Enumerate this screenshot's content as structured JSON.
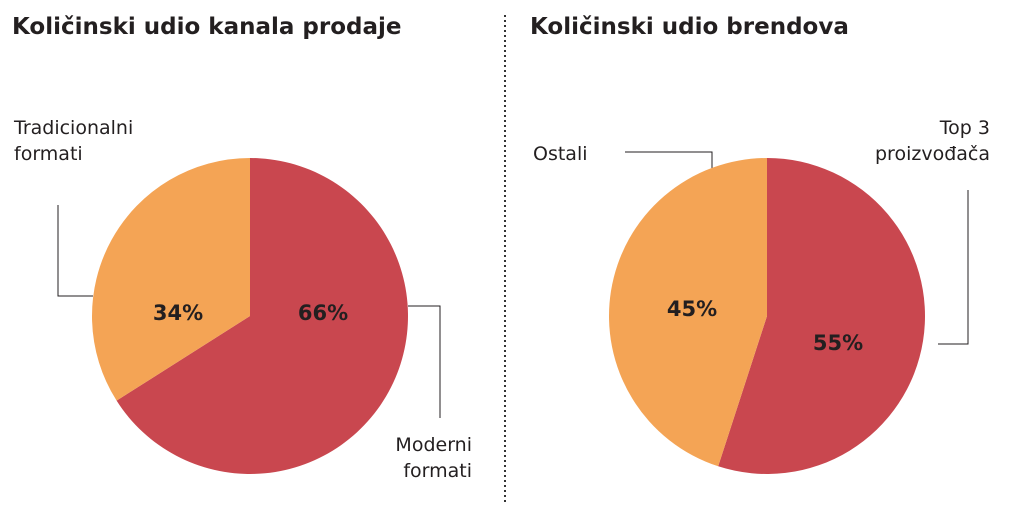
{
  "chart_data": [
    {
      "type": "pie",
      "title": "Količinski udio kanala prodaje",
      "categories": [
        "Moderni formati",
        "Tradicionalni formati"
      ],
      "values": [
        66,
        34
      ],
      "value_labels": [
        "66%",
        "34%"
      ],
      "colors": [
        "#c9474f",
        "#f4a455"
      ]
    },
    {
      "type": "pie",
      "title": "Količinski udio brendova",
      "categories": [
        "Top 3 proizvođača",
        "Ostali"
      ],
      "values": [
        55,
        45
      ],
      "value_labels": [
        "55%",
        "45%"
      ],
      "colors": [
        "#c9474f",
        "#f4a455"
      ]
    }
  ]
}
